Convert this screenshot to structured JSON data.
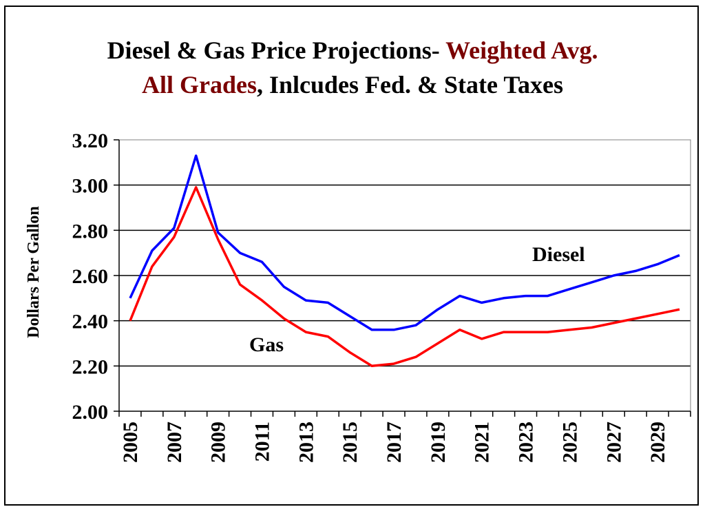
{
  "chart_data": {
    "type": "line",
    "title_parts": [
      {
        "text": "Diesel & Gas Price Projections- ",
        "color": "#000000"
      },
      {
        "text": "Weighted Avg.",
        "color": "#7a0000"
      },
      {
        "text": "All Grades",
        "color": "#7a0000"
      },
      {
        "text": ", Inlcudes Fed. & State Taxes",
        "color": "#000000"
      }
    ],
    "ylabel": "Dollars Per Gallon",
    "xlabel": "",
    "ylim": [
      2.0,
      3.2
    ],
    "yticks": [
      "2.00",
      "2.20",
      "2.40",
      "2.60",
      "2.80",
      "3.00",
      "3.20"
    ],
    "xtick_labels": [
      "2005",
      "2007",
      "2009",
      "2011",
      "2013",
      "2015",
      "2017",
      "2019",
      "2021",
      "2023",
      "2025",
      "2027",
      "2029"
    ],
    "x": [
      2005,
      2006,
      2007,
      2008,
      2009,
      2010,
      2011,
      2012,
      2013,
      2014,
      2015,
      2016,
      2017,
      2018,
      2019,
      2020,
      2021,
      2022,
      2023,
      2024,
      2025,
      2026,
      2027,
      2028,
      2029,
      2030
    ],
    "grid": "horizontal",
    "series": [
      {
        "name": "Diesel",
        "color": "#0000ff",
        "values": [
          2.5,
          2.71,
          2.81,
          3.13,
          2.79,
          2.7,
          2.66,
          2.55,
          2.49,
          2.48,
          2.42,
          2.36,
          2.36,
          2.38,
          2.45,
          2.51,
          2.48,
          2.5,
          2.51,
          2.51,
          2.54,
          2.57,
          2.6,
          2.62,
          2.65,
          2.69
        ]
      },
      {
        "name": "Gas",
        "color": "#ff0000",
        "values": [
          2.4,
          2.64,
          2.77,
          2.99,
          2.76,
          2.56,
          2.49,
          2.41,
          2.35,
          2.33,
          2.26,
          2.2,
          2.21,
          2.24,
          2.3,
          2.36,
          2.32,
          2.35,
          2.35,
          2.35,
          2.36,
          2.37,
          2.39,
          2.41,
          2.43,
          2.45
        ]
      }
    ]
  }
}
